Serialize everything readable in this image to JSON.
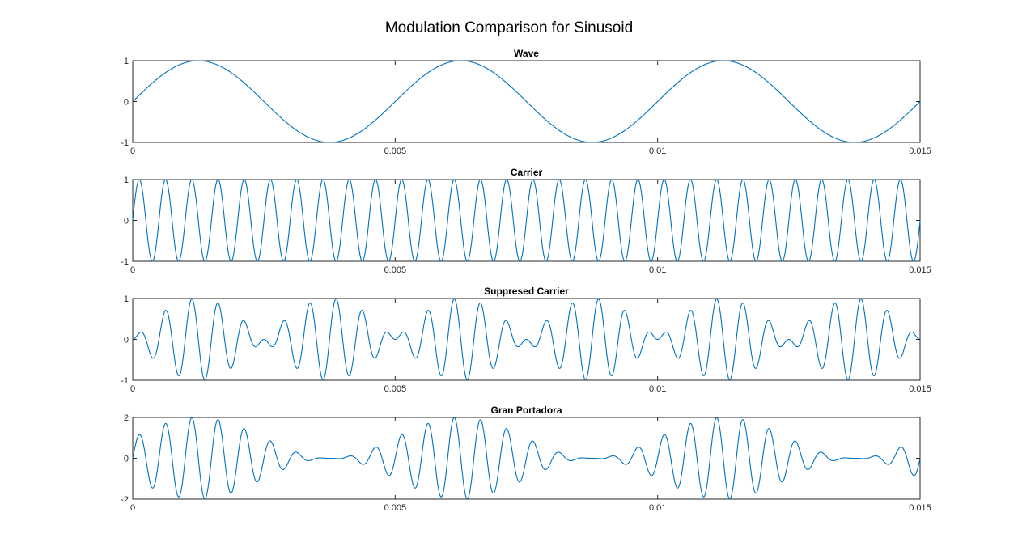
{
  "figure": {
    "title": "Modulation Comparison for Sinusoid"
  },
  "colors": {
    "line": "#0072BD",
    "axis": "#262626",
    "background": "#ffffff"
  },
  "chart_data": [
    {
      "type": "line",
      "title": "Wave",
      "xlabel": "",
      "ylabel": "",
      "xlim": [
        0,
        0.015
      ],
      "ylim": [
        -1,
        1
      ],
      "xticks": [
        0,
        0.005,
        0.01,
        0.015
      ],
      "xtick_labels": [
        "0",
        "0.005",
        "0.01",
        "0.015"
      ],
      "yticks": [
        -1,
        0,
        1
      ],
      "ytick_labels": [
        "-1",
        "0",
        "1"
      ],
      "grid": false,
      "series": [
        {
          "formula": "sin(2*pi*fm*t)",
          "fm_hz": 200,
          "carrier_hz": 0,
          "t_start": 0,
          "t_end": 0.015
        }
      ]
    },
    {
      "type": "line",
      "title": "Carrier",
      "xlabel": "",
      "ylabel": "",
      "xlim": [
        0,
        0.015
      ],
      "ylim": [
        -1,
        1
      ],
      "xticks": [
        0,
        0.005,
        0.01,
        0.015
      ],
      "xtick_labels": [
        "0",
        "0.005",
        "0.01",
        "0.015"
      ],
      "yticks": [
        -1,
        0,
        1
      ],
      "ytick_labels": [
        "-1",
        "0",
        "1"
      ],
      "grid": false,
      "series": [
        {
          "formula": "sin(2*pi*fc*t)",
          "fm_hz": 0,
          "carrier_hz": 2000,
          "t_start": 0,
          "t_end": 0.015
        }
      ]
    },
    {
      "type": "line",
      "title": "Suppresed Carrier",
      "xlabel": "",
      "ylabel": "",
      "xlim": [
        0,
        0.015
      ],
      "ylim": [
        -1,
        1
      ],
      "xticks": [
        0,
        0.005,
        0.01,
        0.015
      ],
      "xtick_labels": [
        "0",
        "0.005",
        "0.01",
        "0.015"
      ],
      "yticks": [
        -1,
        0,
        1
      ],
      "ytick_labels": [
        "-1",
        "0",
        "1"
      ],
      "grid": false,
      "series": [
        {
          "formula": "sin(2*pi*fm*t) * sin(2*pi*fc*t)",
          "fm_hz": 200,
          "carrier_hz": 2000,
          "t_start": 0,
          "t_end": 0.015
        }
      ]
    },
    {
      "type": "line",
      "title": "Gran Portadora",
      "xlabel": "",
      "ylabel": "",
      "xlim": [
        0,
        0.015
      ],
      "ylim": [
        -2,
        2
      ],
      "xticks": [
        0,
        0.005,
        0.01,
        0.015
      ],
      "xtick_labels": [
        "0",
        "0.005",
        "0.01",
        "0.015"
      ],
      "yticks": [
        -2,
        0,
        2
      ],
      "ytick_labels": [
        "-2",
        "0",
        "2"
      ],
      "grid": false,
      "series": [
        {
          "formula": "(1 + sin(2*pi*fm*t)) * sin(2*pi*fc*t)",
          "fm_hz": 200,
          "carrier_hz": 2000,
          "t_start": 0,
          "t_end": 0.015
        }
      ]
    }
  ]
}
